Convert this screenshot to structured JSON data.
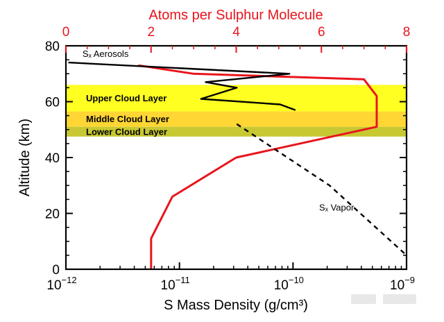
{
  "chart_data": {
    "type": "line",
    "title": "",
    "bottom_axis": {
      "label": "S Mass Density (g/cm³)",
      "scale": "log",
      "range": [
        "1e-12",
        "1e-9"
      ],
      "ticks": [
        {
          "value": "1e-12",
          "base": "10",
          "exp": "−12"
        },
        {
          "value": "1e-11",
          "base": "10",
          "exp": "−11"
        },
        {
          "value": "1e-10",
          "base": "10",
          "exp": "−10"
        },
        {
          "value": "1e-9",
          "base": "10",
          "exp": "−9"
        }
      ]
    },
    "top_axis": {
      "label": "Atoms per Sulphur Molecule",
      "range": [
        0,
        8
      ],
      "ticks": [
        "0",
        "2",
        "4",
        "6",
        "8"
      ],
      "color": "#e8141c"
    },
    "y_axis": {
      "label": "Altitude (km)",
      "range": [
        0,
        80
      ],
      "ticks": [
        "0",
        "20",
        "40",
        "60",
        "80"
      ]
    },
    "bands": [
      {
        "label": "Upper Cloud Layer",
        "range": [
          56.5,
          66
        ],
        "color": "#ffff22"
      },
      {
        "label": "Middle Cloud Layer",
        "range": [
          51,
          56.5
        ],
        "color": "#ffd633"
      },
      {
        "label": "Lower Cloud Layer",
        "range": [
          47.5,
          51
        ],
        "color": "#c8c832"
      }
    ],
    "series": [
      {
        "name": "",
        "axis": "top",
        "color": "#e8141c",
        "style": "solid",
        "x": [
          2.0,
          2.0,
          2.5,
          4.0,
          7.3,
          7.3,
          7.0,
          3.0,
          1.7
        ],
        "y": [
          0,
          11,
          26,
          40,
          51,
          62,
          68,
          70,
          73
        ]
      },
      {
        "name": "Sₓ Aerosols",
        "axis": "bottom",
        "color": "#000000",
        "style": "solid",
        "x": [
          1.05e-12,
          9.3e-11,
          1.7e-11,
          3.2e-11,
          1.55e-11,
          7.7e-11,
          1.05e-10
        ],
        "y": [
          74,
          70,
          67,
          65,
          61,
          59,
          57
        ]
      },
      {
        "name": "Sₓ Vapor",
        "axis": "bottom",
        "color": "#000000",
        "style": "dashed",
        "x": [
          3.2e-11,
          2.1e-10,
          1e-09
        ],
        "y": [
          52,
          30,
          5
        ]
      }
    ],
    "annotations": [
      {
        "text": "Sₓ Aerosols",
        "x": "1.4e-12",
        "y": 76
      },
      {
        "text": "Sₓ Vapor",
        "x": "1.7e-10",
        "y": 21
      }
    ]
  }
}
